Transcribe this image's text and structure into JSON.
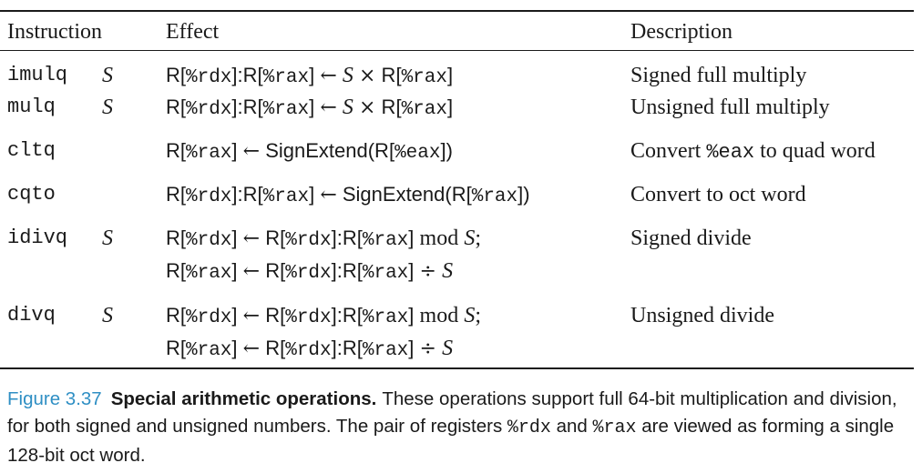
{
  "table": {
    "headers": {
      "instruction": "Instruction",
      "effect": "Effect",
      "description": "Description"
    },
    "rows": [
      {
        "instr": "imulq",
        "operand": "S",
        "effect": [
          "R[",
          "%rdx",
          "]:R[",
          "%rax",
          "] ",
          "←",
          " ",
          "S",
          " ",
          "×",
          " R[",
          "%rax",
          "]"
        ],
        "description": "Signed full multiply"
      },
      {
        "instr": "mulq",
        "operand": "S",
        "effect": [
          "R[",
          "%rdx",
          "]:R[",
          "%rax",
          "] ",
          "←",
          " ",
          "S",
          " ",
          "×",
          " R[",
          "%rax",
          "]"
        ],
        "description": "Unsigned full multiply"
      },
      {
        "instr": "cltq",
        "operand": "",
        "effect": [
          "R[",
          "%rax",
          "] ",
          "←",
          " SignExtend(R[",
          "%eax",
          "])"
        ],
        "description_parts": [
          "Convert ",
          "%eax",
          " to quad word"
        ]
      },
      {
        "instr": "cqto",
        "operand": "",
        "effect": [
          "R[",
          "%rdx",
          "]:R[",
          "%rax",
          "] ",
          "←",
          " SignExtend(R[",
          "%rax",
          "])"
        ],
        "description": "Convert to oct word"
      },
      {
        "instr": "idivq",
        "operand": "S",
        "effect_line1": [
          "R[",
          "%rdx",
          "] ",
          "←",
          " R[",
          "%rdx",
          "]:R[",
          "%rax",
          "] ",
          "mod",
          " ",
          "S",
          ";"
        ],
        "effect_line2": [
          "R[",
          "%rax",
          "] ",
          "←",
          " R[",
          "%rdx",
          "]:R[",
          "%rax",
          "] ",
          "÷",
          " ",
          "S"
        ],
        "description": "Signed divide"
      },
      {
        "instr": "divq",
        "operand": "S",
        "effect_line1": [
          "R[",
          "%rdx",
          "] ",
          "←",
          " R[",
          "%rdx",
          "]:R[",
          "%rax",
          "] ",
          "mod",
          " ",
          "S",
          ";"
        ],
        "effect_line2": [
          "R[",
          "%rax",
          "] ",
          "←",
          " R[",
          "%rdx",
          "]:R[",
          "%rax",
          "] ",
          "÷",
          " ",
          "S"
        ],
        "description": "Unsigned divide"
      }
    ]
  },
  "caption": {
    "figure_number": "Figure 3.37",
    "title": "Special arithmetic operations.",
    "text_1": "These operations support full 64-bit multiplication and division, for both signed and unsigned numbers. The pair of registers ",
    "reg_1": "%rdx",
    "text_2": " and ",
    "reg_2": "%rax",
    "text_3": " are viewed as forming a single 128-bit oct word."
  }
}
